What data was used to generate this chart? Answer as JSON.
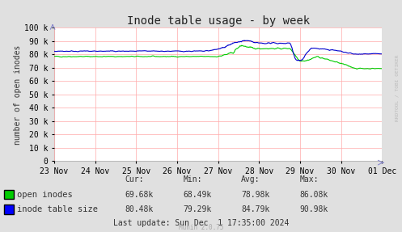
{
  "title": "Inode table usage - by week",
  "ylabel": "number of open inodes",
  "background_color": "#e0e0e0",
  "plot_bg_color": "#ffffff",
  "grid_color": "#ffaaaa",
  "x_labels": [
    "23 Nov",
    "24 Nov",
    "25 Nov",
    "26 Nov",
    "27 Nov",
    "28 Nov",
    "29 Nov",
    "30 Nov",
    "01 Dec"
  ],
  "yticks": [
    0,
    10000,
    20000,
    30000,
    40000,
    50000,
    60000,
    70000,
    80000,
    90000,
    100000
  ],
  "ytick_labels": [
    "0",
    "10 k",
    "20 k",
    "30 k",
    "40 k",
    "50 k",
    "60 k",
    "70 k",
    "80 k",
    "90 k",
    "100 k"
  ],
  "legend_entries": [
    "open inodes",
    "inode table size"
  ],
  "legend_colors": [
    "#00cc00",
    "#0000ff"
  ],
  "stats_headers": [
    "Cur:",
    "Min:",
    "Avg:",
    "Max:"
  ],
  "stats_open_inodes": [
    "69.68k",
    "68.49k",
    "78.98k",
    "86.08k"
  ],
  "stats_inode_table": [
    "80.48k",
    "79.29k",
    "84.79k",
    "90.98k"
  ],
  "last_update": "Last update: Sun Dec  1 17:35:00 2024",
  "munin_version": "Munin 2.0.75",
  "rrdtool_label": "RRDTOOL / TOBI OETIKER",
  "green_color": "#00cc00",
  "blue_color": "#0000cc",
  "title_fontsize": 10,
  "axis_fontsize": 7,
  "legend_fontsize": 7.5,
  "stats_fontsize": 7
}
